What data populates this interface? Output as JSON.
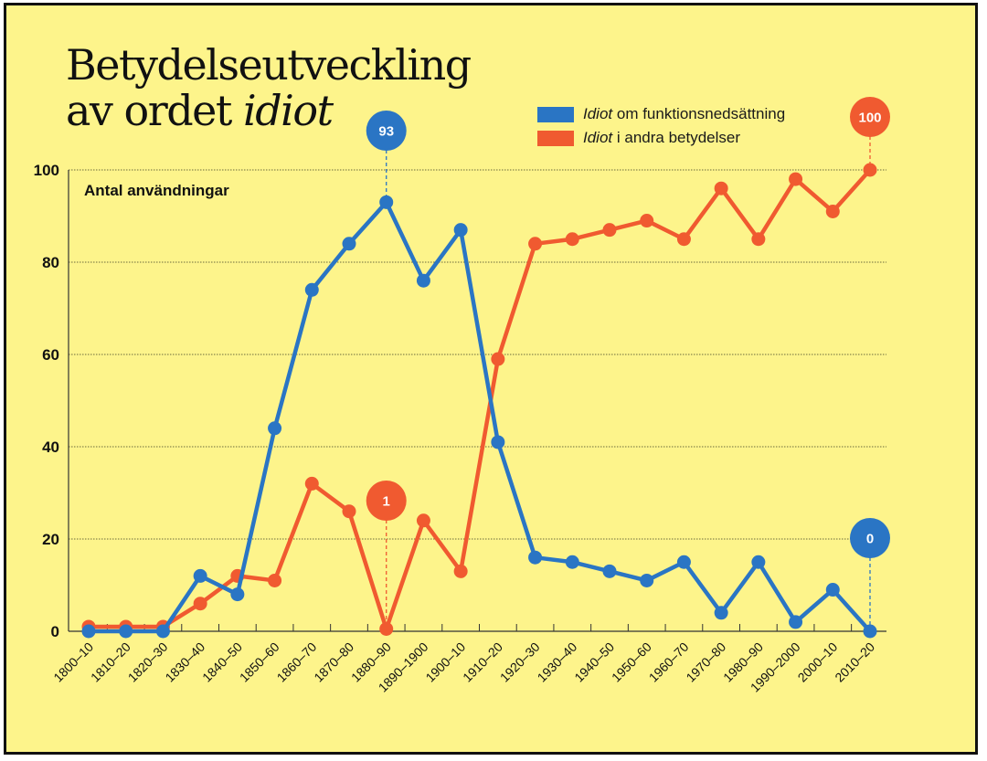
{
  "title": {
    "line1": "Betydelseutveckling",
    "line2_plain": "av ordet ",
    "line2_italic": "idiot"
  },
  "legend": [
    {
      "italic": "Idiot",
      "text": " om funktionsnedsättning",
      "color": "#2a75c4"
    },
    {
      "italic": "Idiot",
      "text": " i andra betydelser",
      "color": "#f05a30"
    }
  ],
  "colors": {
    "background": "#fdf48b",
    "blue": "#2a75c4",
    "orange": "#f05a30"
  },
  "chart_data": {
    "type": "line",
    "title": "Betydelseutveckling av ordet idiot",
    "ylabel": "Antal användningar",
    "xlabel": "",
    "ylim": [
      0,
      100
    ],
    "yticks": [
      0,
      20,
      40,
      60,
      80,
      100
    ],
    "grid": true,
    "legend_position": "top-right",
    "categories": [
      "1800–10",
      "1810–20",
      "1820–30",
      "1830–40",
      "1840–50",
      "1850–60",
      "1860–70",
      "1870–80",
      "1880–90",
      "1890–1900",
      "1900–10",
      "1910–20",
      "1920–30",
      "1930–40",
      "1940–50",
      "1950–60",
      "1960–70",
      "1970–80",
      "1980–90",
      "1990–2000",
      "2000–10",
      "2010–20"
    ],
    "series": [
      {
        "name": "Idiot om funktionsnedsättning",
        "color": "#2a75c4",
        "values": [
          0,
          0,
          0,
          12,
          8,
          44,
          74,
          84,
          93,
          76,
          87,
          41,
          16,
          15,
          13,
          11,
          15,
          4,
          15,
          2,
          9,
          0
        ]
      },
      {
        "name": "Idiot i andra betydelser",
        "color": "#f05a30",
        "values": [
          1,
          1,
          1,
          6,
          12,
          11,
          32,
          26,
          1,
          24,
          13,
          59,
          84,
          85,
          87,
          89,
          85,
          96,
          85,
          98,
          91,
          100
        ]
      }
    ],
    "annotations": [
      {
        "series": 0,
        "category": "1880–90",
        "label": "93"
      },
      {
        "series": 1,
        "category": "1880–90",
        "label": "1"
      },
      {
        "series": 0,
        "category": "2010–20",
        "label": "0"
      },
      {
        "series": 1,
        "category": "2010–20",
        "label": "100"
      }
    ]
  }
}
